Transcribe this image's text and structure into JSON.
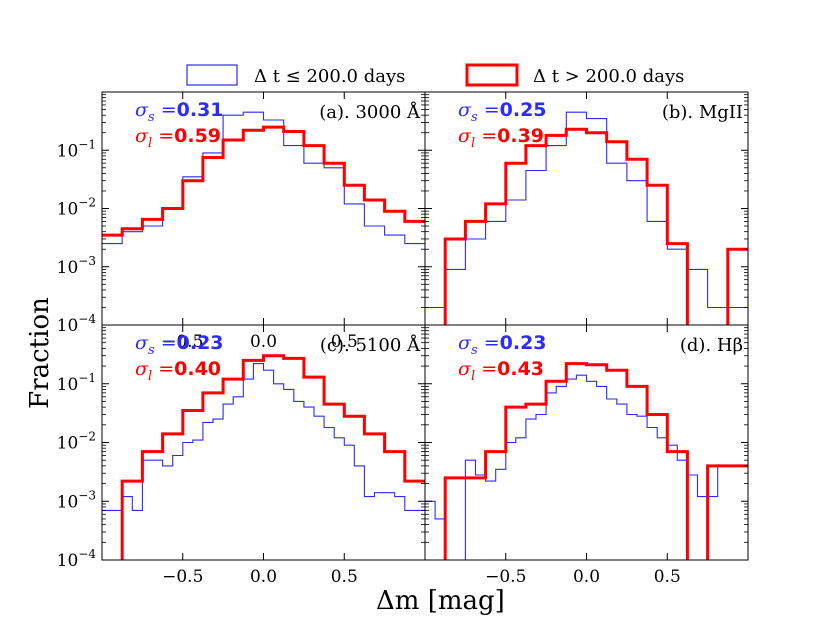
{
  "colors": {
    "short": "#2b2bff",
    "long": "#ff0000",
    "axis": "#000000"
  },
  "legend": {
    "short_label": "Δ t ≤ 200.0 days",
    "long_label": "Δ t > 200.0 days"
  },
  "axes": {
    "xlabel": "Δm [mag]",
    "ylabel": "Fraction"
  },
  "chart_data": [
    {
      "type": "histogram",
      "title": "(a). 3000 Å",
      "xlim": [
        -1.0,
        1.0
      ],
      "ylim_log10": [
        -4,
        0
      ],
      "xticks": [
        -0.5,
        0.0,
        0.5
      ],
      "xtick_labels": [
        "−0.5",
        "0.0",
        "0.5"
      ],
      "yticks": [
        -4,
        -3,
        -2,
        -1
      ],
      "sigma_s_symbol": "σ",
      "sigma_s_sub": "s",
      "sigma_s_eq": " =",
      "sigma_s_value": "0.31",
      "sigma_l_symbol": "σ",
      "sigma_l_sub": "l",
      "sigma_l_eq": " =",
      "sigma_l_value": "0.59",
      "series": [
        {
          "name": "short",
          "edges": [
            -1.0,
            -0.875,
            -0.75,
            -0.625,
            -0.5,
            -0.375,
            -0.25,
            -0.125,
            0.0,
            0.125,
            0.25,
            0.375,
            0.5,
            0.625,
            0.75,
            0.875,
            1.0
          ],
          "values": [
            0.0025,
            0.004,
            0.005,
            0.01,
            0.035,
            0.09,
            0.4,
            0.45,
            0.33,
            0.12,
            0.06,
            0.05,
            0.012,
            0.005,
            0.0035,
            0.0025
          ]
        },
        {
          "name": "long",
          "edges": [
            -1.0,
            -0.875,
            -0.75,
            -0.625,
            -0.5,
            -0.375,
            -0.25,
            -0.125,
            0.0,
            0.125,
            0.25,
            0.375,
            0.5,
            0.625,
            0.75,
            0.875,
            1.0
          ],
          "values": [
            0.0035,
            0.0045,
            0.0065,
            0.01,
            0.03,
            0.075,
            0.15,
            0.22,
            0.25,
            0.21,
            0.12,
            0.06,
            0.025,
            0.014,
            0.009,
            0.006
          ]
        }
      ]
    },
    {
      "type": "histogram",
      "title": "(b). MgII",
      "xlim": [
        -1.0,
        1.0
      ],
      "ylim_log10": [
        -4,
        0
      ],
      "xticks": [],
      "xtick_labels": [],
      "yticks": [],
      "sigma_s_symbol": "σ",
      "sigma_s_sub": "s",
      "sigma_s_eq": " =",
      "sigma_s_value": "0.25",
      "sigma_l_symbol": "σ",
      "sigma_l_sub": "l",
      "sigma_l_eq": " =",
      "sigma_l_value": "0.39",
      "series": [
        {
          "name": "short",
          "edges": [
            -1.0,
            -0.875,
            -0.75,
            -0.625,
            -0.5,
            -0.375,
            -0.25,
            -0.125,
            0.0,
            0.125,
            0.25,
            0.375,
            0.5,
            0.625,
            0.75,
            0.875,
            1.0
          ],
          "values": [
            0.0002,
            0.0009,
            0.003,
            0.006,
            0.014,
            0.045,
            0.12,
            0.45,
            0.35,
            0.06,
            0.03,
            0.006,
            0.002,
            0.0009,
            0.0002,
            0.0002
          ]
        },
        {
          "name": "long",
          "edges": [
            -1.0,
            -0.875,
            -0.75,
            -0.625,
            -0.5,
            -0.375,
            -0.25,
            -0.125,
            0.0,
            0.125,
            0.25,
            0.375,
            0.5,
            0.625,
            0.75,
            0.875,
            1.0
          ],
          "values": [
            1e-05,
            0.003,
            0.006,
            0.012,
            0.06,
            0.12,
            0.18,
            0.23,
            0.2,
            0.14,
            0.07,
            0.025,
            0.0025,
            1e-05,
            1e-05,
            0.002
          ]
        }
      ]
    },
    {
      "type": "histogram",
      "title": "(c). 5100 Å",
      "xlim": [
        -1.0,
        1.0
      ],
      "ylim_log10": [
        -4,
        0
      ],
      "xticks": [
        -0.5,
        0.0,
        0.5
      ],
      "xtick_labels": [
        "−0.5",
        "0.0",
        "0.5"
      ],
      "yticks": [
        -4,
        -3,
        -2,
        -1
      ],
      "sigma_s_symbol": "σ",
      "sigma_s_sub": "s",
      "sigma_s_eq": " =",
      "sigma_s_value": "0.23",
      "sigma_l_symbol": "σ",
      "sigma_l_sub": "l",
      "sigma_l_eq": " =",
      "sigma_l_value": "0.40",
      "series": [
        {
          "name": "short",
          "edges": [
            -1.0,
            -0.9375,
            -0.875,
            -0.8125,
            -0.75,
            -0.6875,
            -0.625,
            -0.5625,
            -0.5,
            -0.4375,
            -0.375,
            -0.3125,
            -0.25,
            -0.1875,
            -0.125,
            -0.0625,
            0.0,
            0.0625,
            0.125,
            0.1875,
            0.25,
            0.3125,
            0.375,
            0.4375,
            0.5,
            0.5625,
            0.625,
            0.6875,
            0.75,
            0.8125,
            0.875,
            0.9375,
            1.0
          ],
          "values": [
            0.0007,
            0.0007,
            0.0012,
            0.0007,
            0.005,
            0.005,
            0.004,
            0.006,
            0.01,
            0.011,
            0.022,
            0.025,
            0.045,
            0.06,
            0.12,
            0.22,
            0.17,
            0.1,
            0.08,
            0.05,
            0.04,
            0.028,
            0.018,
            0.012,
            0.009,
            0.004,
            0.0012,
            0.0014,
            0.0014,
            0.0012,
            0.0007,
            0.0007
          ]
        },
        {
          "name": "long",
          "edges": [
            -1.0,
            -0.875,
            -0.75,
            -0.625,
            -0.5,
            -0.375,
            -0.25,
            -0.125,
            0.0,
            0.125,
            0.25,
            0.375,
            0.5,
            0.625,
            0.75,
            0.875,
            1.0
          ],
          "values": [
            1e-05,
            0.0022,
            0.007,
            0.014,
            0.035,
            0.07,
            0.12,
            0.25,
            0.3,
            0.27,
            0.13,
            0.045,
            0.028,
            0.014,
            0.007,
            0.0022
          ]
        }
      ]
    },
    {
      "type": "histogram",
      "title": "(d). Hβ",
      "xlim": [
        -1.0,
        1.0
      ],
      "ylim_log10": [
        -4,
        0
      ],
      "xticks": [
        -0.5,
        0.0,
        0.5
      ],
      "xtick_labels": [
        "−0.5",
        "0.0",
        "0.5"
      ],
      "yticks": [],
      "sigma_s_symbol": "σ",
      "sigma_s_sub": "s",
      "sigma_s_eq": " =",
      "sigma_s_value": "0.23",
      "sigma_l_symbol": "σ",
      "sigma_l_sub": "l",
      "sigma_l_eq": " =",
      "sigma_l_value": "0.43",
      "series": [
        {
          "name": "short",
          "edges": [
            -1.0,
            -0.9375,
            -0.875,
            -0.8125,
            -0.75,
            -0.6875,
            -0.625,
            -0.5625,
            -0.5,
            -0.4375,
            -0.375,
            -0.3125,
            -0.25,
            -0.1875,
            -0.125,
            -0.0625,
            0.0,
            0.0625,
            0.125,
            0.1875,
            0.25,
            0.3125,
            0.375,
            0.4375,
            0.5,
            0.5625,
            0.625,
            0.6875,
            0.75,
            0.8125,
            0.875,
            0.9375,
            1.0
          ],
          "values": [
            0.001,
            0.0005,
            0.0001,
            0.0001,
            0.005,
            0.0028,
            0.0022,
            0.0035,
            0.01,
            0.012,
            0.025,
            0.03,
            0.07,
            0.09,
            0.12,
            0.14,
            0.11,
            0.09,
            0.055,
            0.045,
            0.03,
            0.028,
            0.018,
            0.012,
            0.009,
            0.005,
            0.0028,
            0.0012,
            0.0012,
            0.004,
            0.004,
            0.004
          ]
        },
        {
          "name": "long",
          "edges": [
            -1.0,
            -0.875,
            -0.75,
            -0.625,
            -0.5,
            -0.375,
            -0.25,
            -0.125,
            0.0,
            0.125,
            0.25,
            0.375,
            0.5,
            0.625,
            0.75,
            0.875,
            1.0
          ],
          "values": [
            1e-05,
            0.0025,
            0.0025,
            0.007,
            0.04,
            0.045,
            0.11,
            0.22,
            0.21,
            0.17,
            0.09,
            0.03,
            0.007,
            1e-05,
            0.004,
            0.004
          ]
        }
      ]
    }
  ]
}
